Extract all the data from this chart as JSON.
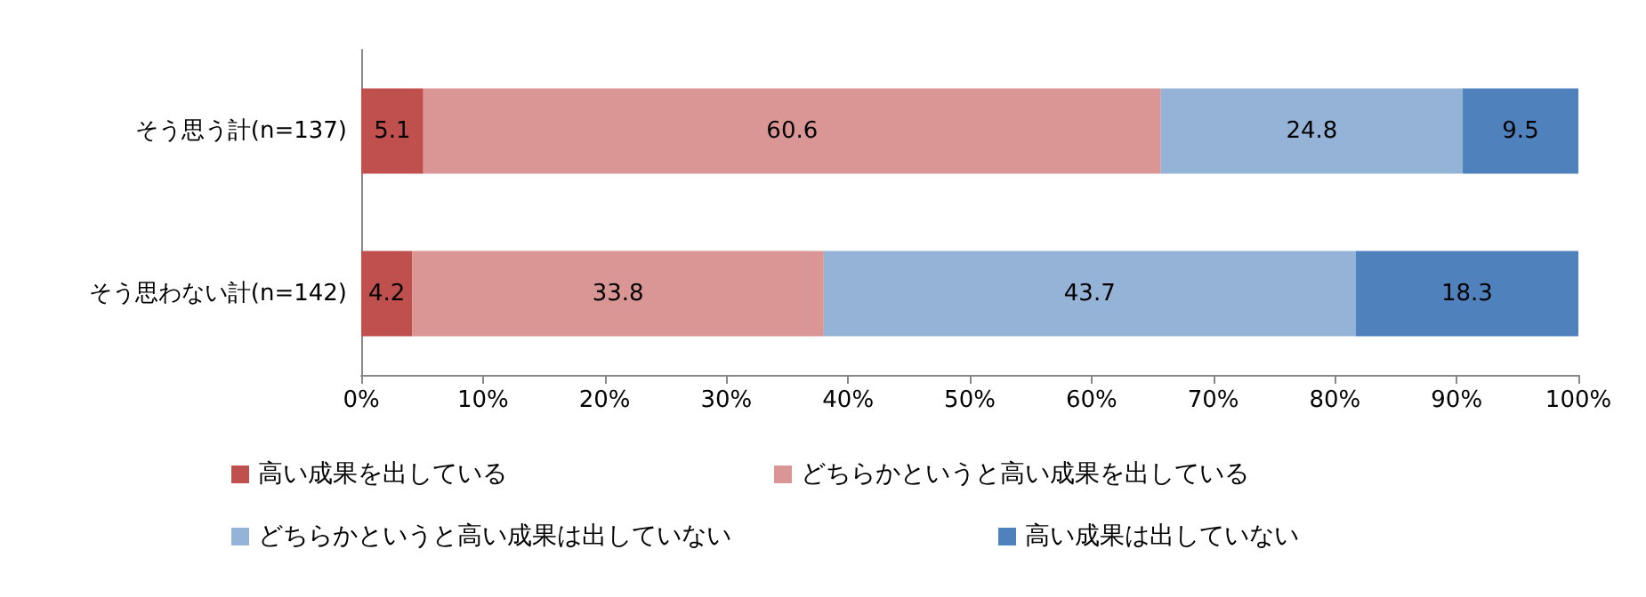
{
  "chart_data": {
    "type": "bar",
    "orientation": "horizontal",
    "stacked": true,
    "data_labels": true,
    "legend": "bottom",
    "grid": false,
    "categories": [
      "そう思う計(n=137)",
      "そう思わない計(n=142)"
    ],
    "series": [
      {
        "name": "高い成果を出している",
        "color": "#c0504d",
        "values": [
          5.1,
          4.2
        ]
      },
      {
        "name": "どちらかというと高い成果を出している",
        "color": "#d99694",
        "values": [
          60.6,
          33.8
        ]
      },
      {
        "name": "どちらかというと高い成果は出していない",
        "color": "#95b3d7",
        "values": [
          24.8,
          43.7
        ]
      },
      {
        "name": "高い成果は出していない",
        "color": "#4f81bd",
        "values": [
          9.5,
          18.3
        ]
      }
    ],
    "xlim": [
      0,
      100
    ],
    "xticks": [
      {
        "value": 0,
        "label": "0%"
      },
      {
        "value": 10,
        "label": "10%"
      },
      {
        "value": 20,
        "label": "20%"
      },
      {
        "value": 30,
        "label": "30%"
      },
      {
        "value": 40,
        "label": "40%"
      },
      {
        "value": 50,
        "label": "50%"
      },
      {
        "value": 60,
        "label": "60%"
      },
      {
        "value": 70,
        "label": "70%"
      },
      {
        "value": 80,
        "label": "80%"
      },
      {
        "value": 90,
        "label": "90%"
      },
      {
        "value": 100,
        "label": "100%"
      }
    ]
  }
}
